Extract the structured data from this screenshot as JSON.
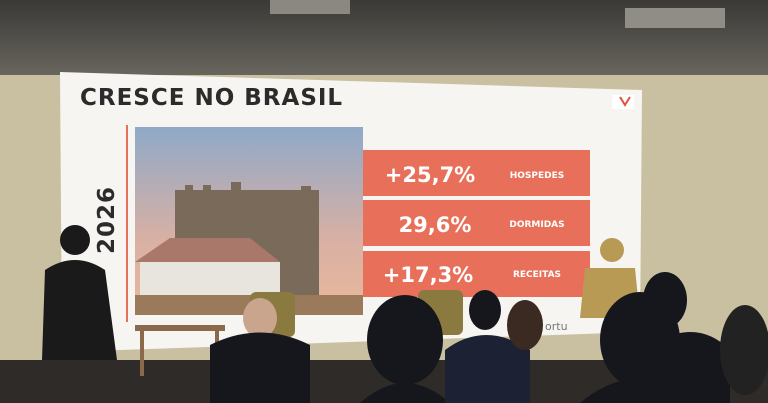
{
  "slide": {
    "title": "CRESCE NO BRASIL",
    "year": "2026",
    "stats": [
      {
        "value": "+25,7%",
        "label": "HOSPEDES"
      },
      {
        "value": "29,6%",
        "label": "DORMIDAS"
      },
      {
        "value": "+17,3%",
        "label": "RECEITAS"
      }
    ],
    "logo_text": "ortu"
  }
}
